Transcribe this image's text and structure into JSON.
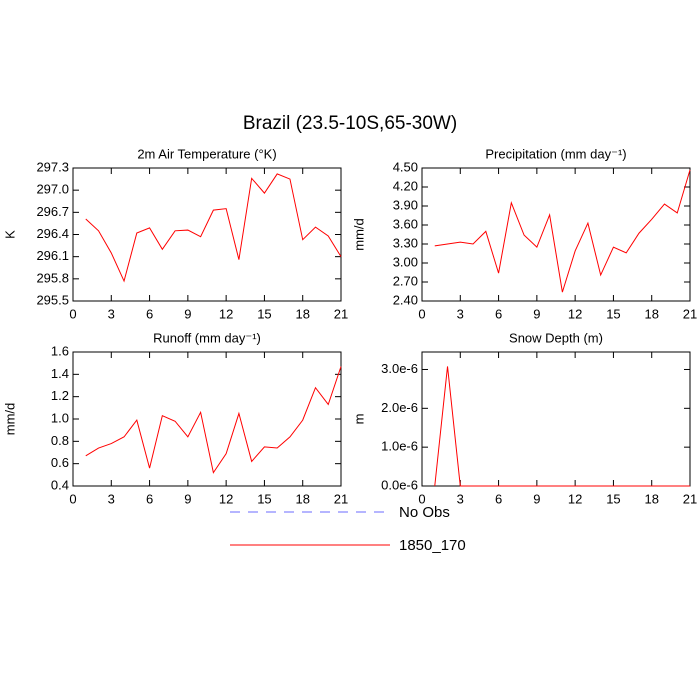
{
  "title": "Brazil (23.5-10S,65-30W)",
  "legend": [
    {
      "name": "No Obs",
      "color": "#6b6bff",
      "dash": true
    },
    {
      "name": "1850_170",
      "color": "#ff0000",
      "dash": false
    }
  ],
  "chart_data": [
    {
      "type": "line",
      "title": "2m Air Temperature (°K)",
      "y_label": "K",
      "x": [
        1,
        2,
        3,
        4,
        5,
        6,
        7,
        8,
        9,
        10,
        11,
        12,
        13,
        14,
        15,
        16,
        17,
        18,
        19,
        20,
        21
      ],
      "series": [
        {
          "color": "#ff0000",
          "values": [
            296.61,
            296.45,
            296.15,
            295.77,
            296.42,
            296.49,
            296.2,
            296.45,
            296.46,
            296.37,
            296.73,
            296.75,
            296.06,
            297.16,
            296.96,
            297.22,
            297.15,
            296.33,
            296.5,
            296.38,
            296.1
          ]
        }
      ],
      "xlim": [
        0,
        21
      ],
      "xticks": [
        0,
        3,
        6,
        9,
        12,
        15,
        18,
        21
      ],
      "ylim": [
        295.5,
        297.3
      ],
      "yticks": [
        295.5,
        295.8,
        296.1,
        296.4,
        296.7,
        {
          "value": 297.0,
          "label": "297.0"
        },
        297.3
      ]
    },
    {
      "type": "line",
      "title": "Precipitation (mm day⁻¹)",
      "y_label": "mm/d",
      "x": [
        1,
        2,
        3,
        4,
        5,
        6,
        7,
        8,
        9,
        10,
        11,
        12,
        13,
        14,
        15,
        16,
        17,
        18,
        19,
        20,
        21
      ],
      "series": [
        {
          "color": "#ff0000",
          "values": [
            3.27,
            3.3,
            3.33,
            3.3,
            3.5,
            2.84,
            3.95,
            3.44,
            3.25,
            3.76,
            2.54,
            3.19,
            3.63,
            2.81,
            3.25,
            3.16,
            3.47,
            3.69,
            3.93,
            3.79,
            4.47
          ]
        }
      ],
      "xlim": [
        0,
        21
      ],
      "xticks": [
        0,
        3,
        6,
        9,
        12,
        15,
        18,
        21
      ],
      "ylim": [
        2.4,
        4.5
      ],
      "yticks": [
        {
          "value": 2.4,
          "label": "2.40"
        },
        {
          "value": 2.7,
          "label": "2.70"
        },
        {
          "value": 3.0,
          "label": "3.00"
        },
        {
          "value": 3.3,
          "label": "3.30"
        },
        {
          "value": 3.6,
          "label": "3.60"
        },
        {
          "value": 3.9,
          "label": "3.90"
        },
        {
          "value": 4.2,
          "label": "4.20"
        },
        {
          "value": 4.5,
          "label": "4.50"
        }
      ]
    },
    {
      "type": "line",
      "title": "Runoff (mm day⁻¹)",
      "y_label": "mm/d",
      "x": [
        1,
        2,
        3,
        4,
        5,
        6,
        7,
        8,
        9,
        10,
        11,
        12,
        13,
        14,
        15,
        16,
        17,
        18,
        19,
        20,
        21
      ],
      "series": [
        {
          "color": "#ff0000",
          "values": [
            0.67,
            0.74,
            0.78,
            0.84,
            0.99,
            0.56,
            1.03,
            0.98,
            0.84,
            1.06,
            0.52,
            0.69,
            1.05,
            0.62,
            0.75,
            0.74,
            0.84,
            0.99,
            1.28,
            1.13,
            1.47
          ]
        }
      ],
      "xlim": [
        0,
        21
      ],
      "xticks": [
        0,
        3,
        6,
        9,
        12,
        15,
        18,
        21
      ],
      "ylim": [
        0.4,
        1.6
      ],
      "yticks": [
        0.4,
        0.6,
        0.8,
        {
          "value": 1.0,
          "label": "1.0"
        },
        1.2,
        1.4,
        1.6
      ]
    },
    {
      "type": "line",
      "title": "Snow Depth (m)",
      "y_label": "m",
      "x": [
        1,
        2,
        3,
        4,
        5,
        6,
        7,
        8,
        9,
        10,
        11,
        12,
        13,
        14,
        15,
        16,
        17,
        18,
        19,
        20,
        21
      ],
      "series": [
        {
          "color": "#ff0000",
          "values": [
            0,
            3.08e-06,
            0,
            0,
            0,
            0,
            0,
            0,
            0,
            0,
            0,
            0,
            0,
            0,
            0,
            0,
            0,
            0,
            0,
            0,
            0
          ]
        }
      ],
      "xlim": [
        0,
        21
      ],
      "xticks": [
        0,
        3,
        6,
        9,
        12,
        15,
        18,
        21
      ],
      "ylim": [
        0,
        3.45e-06
      ],
      "yticks": [
        {
          "value": 0,
          "label": "0.0e-6"
        },
        {
          "value": 1e-06,
          "label": "1.0e-6"
        },
        {
          "value": 2e-06,
          "label": "2.0e-6"
        },
        {
          "value": 3e-06,
          "label": "3.0e-6"
        }
      ]
    }
  ]
}
